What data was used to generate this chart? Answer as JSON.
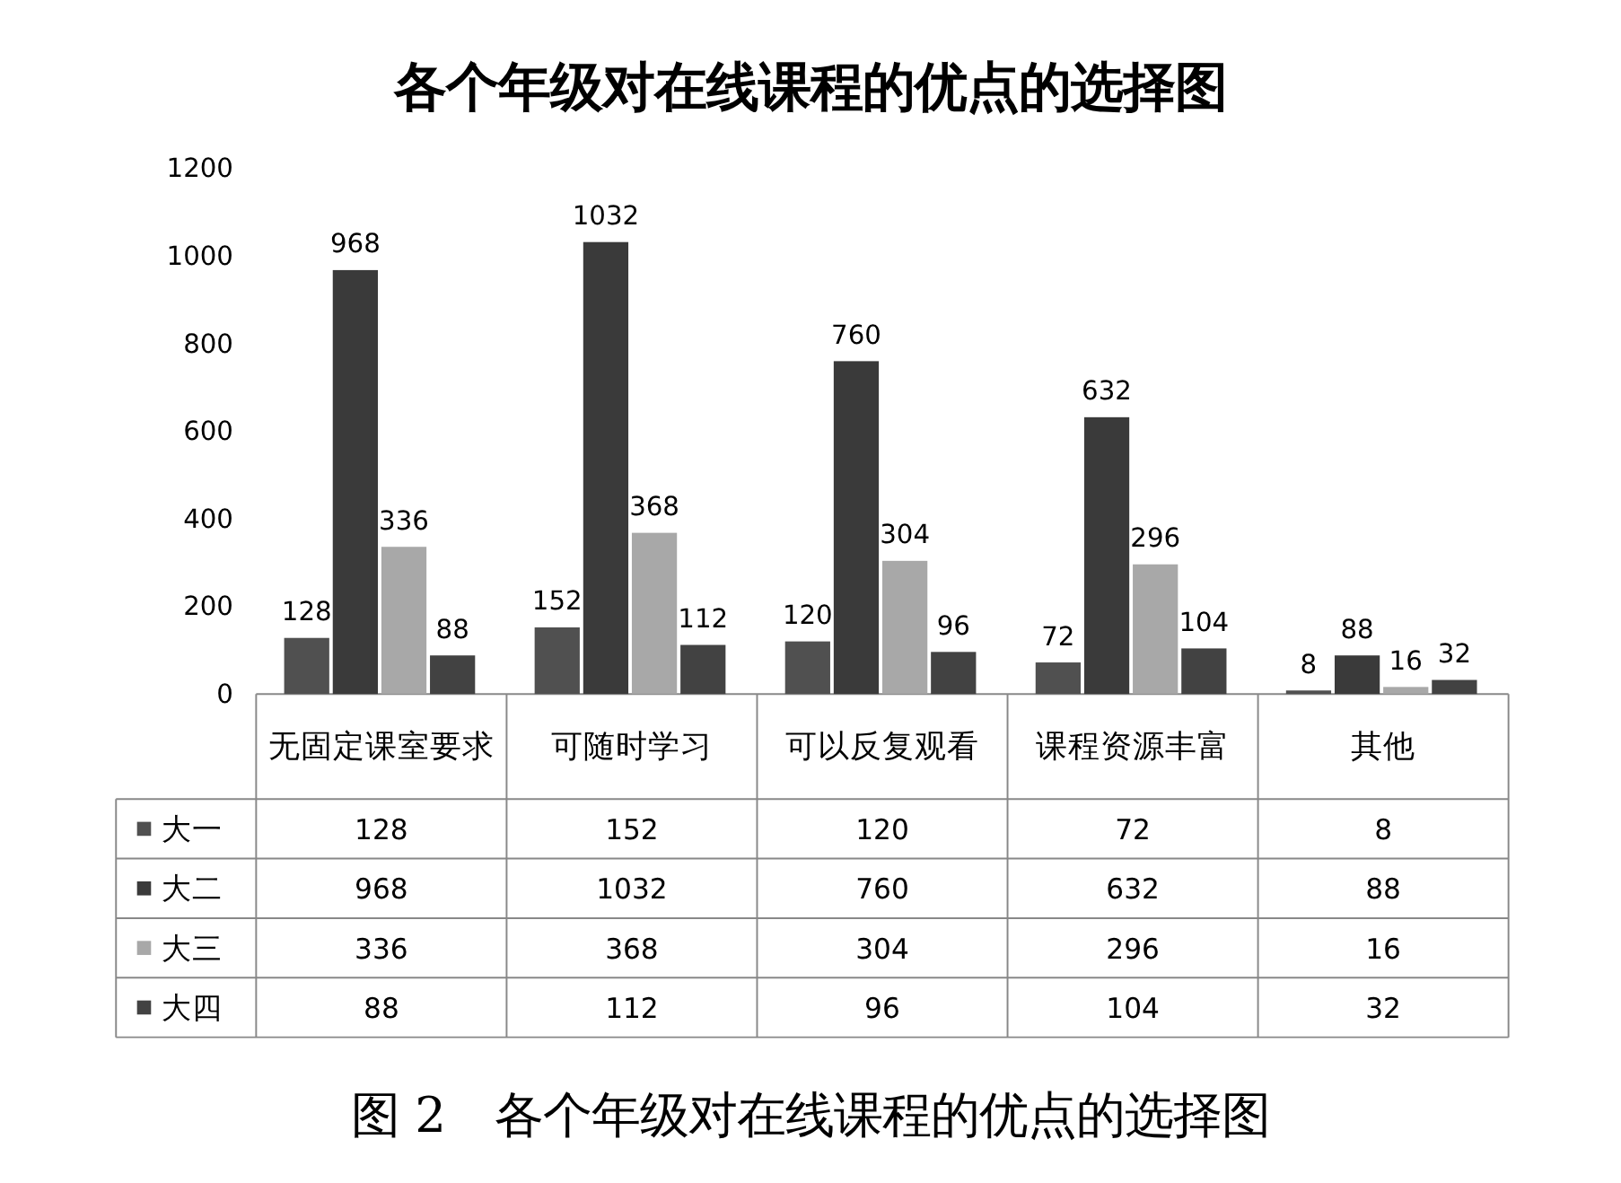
{
  "chart_data": {
    "type": "bar",
    "title": "各个年级对在线课程的优点的选择图",
    "categories": [
      "无固定课室要求",
      "可随时学习",
      "可以反复观看",
      "课程资源丰富",
      "其他"
    ],
    "series": [
      {
        "name": "大一",
        "color": "#505050",
        "values": [
          128,
          152,
          120,
          72,
          8
        ],
        "value_labels": [
          "128",
          "152",
          "120",
          "72",
          "8"
        ]
      },
      {
        "name": "大二",
        "color": "#3a3a3a",
        "values": [
          968,
          1032,
          760,
          632,
          88
        ],
        "value_labels": [
          "968",
          "1032",
          "760",
          "632",
          "88"
        ]
      },
      {
        "name": "大三",
        "color": "#a8a8a8",
        "values": [
          336,
          368,
          304,
          296,
          16
        ],
        "value_labels": [
          "336",
          "368",
          "304",
          "296",
          "16"
        ]
      },
      {
        "name": "大四",
        "color": "#424242",
        "values": [
          88,
          112,
          96,
          104,
          32
        ],
        "value_labels": [
          "88",
          "112",
          "96",
          "104",
          "32"
        ]
      }
    ],
    "ylim": [
      0,
      1200
    ],
    "yticks": [
      0,
      200,
      400,
      600,
      800,
      1000,
      1200
    ],
    "grid": false,
    "legend": "bottom",
    "data_labels": true,
    "annotations": [
      "图 2　各个年级对在线课程的优点的选择图"
    ]
  }
}
